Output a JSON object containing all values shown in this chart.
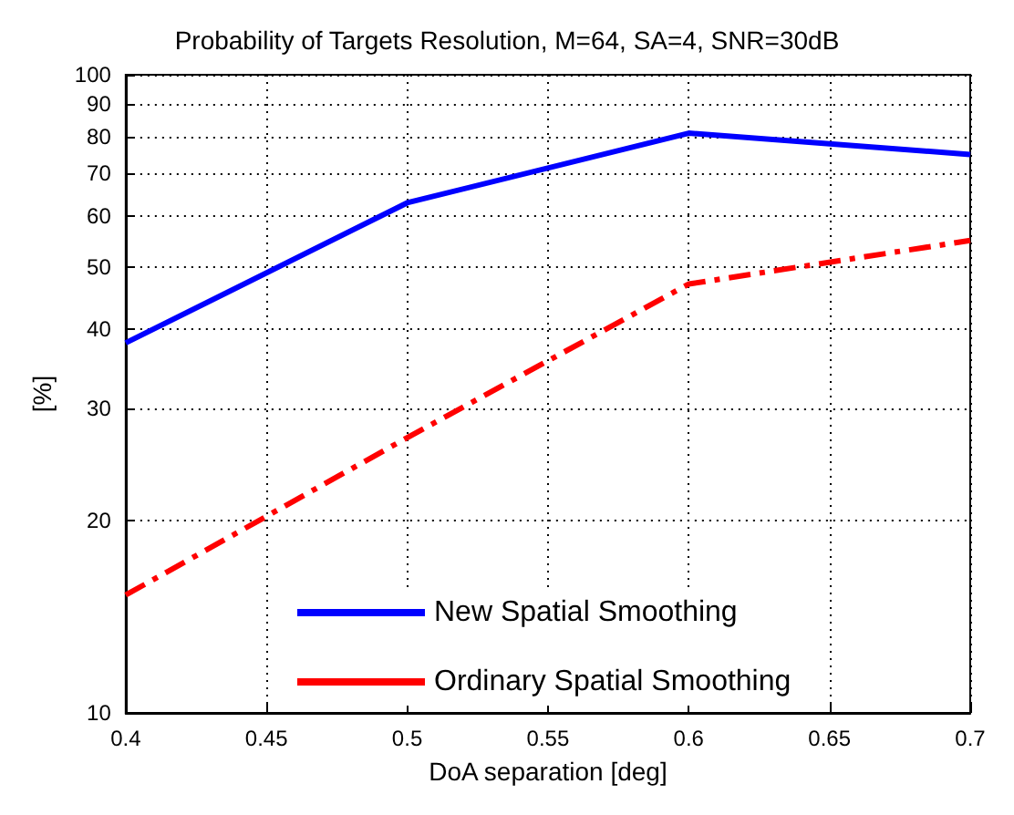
{
  "chart_data": {
    "type": "line",
    "title": "Probability of Targets Resolution, M=64, SA=4, SNR=30dB",
    "xlabel": "DoA separation [deg]",
    "ylabel": "[%]",
    "x": [
      0.4,
      0.5,
      0.6,
      0.7
    ],
    "series": [
      {
        "name": "New Spatial Smoothing",
        "color": "#0000ff",
        "line_style": "solid",
        "values": [
          38,
          63,
          81,
          75
        ]
      },
      {
        "name": "Ordinary Spatial Smoothing",
        "color": "#ff0000",
        "line_style": "dashed",
        "values": [
          15.3,
          27,
          47,
          55
        ]
      }
    ],
    "xlim": [
      0.4,
      0.7
    ],
    "xticks": [
      0.4,
      0.45,
      0.5,
      0.55,
      0.6,
      0.65,
      0.7
    ],
    "ylim": [
      10,
      100
    ],
    "yticks": [
      10,
      20,
      30,
      40,
      50,
      60,
      70,
      80,
      90,
      100
    ],
    "log": "y",
    "grid": true,
    "legend": "bottom",
    "marker": "none"
  }
}
